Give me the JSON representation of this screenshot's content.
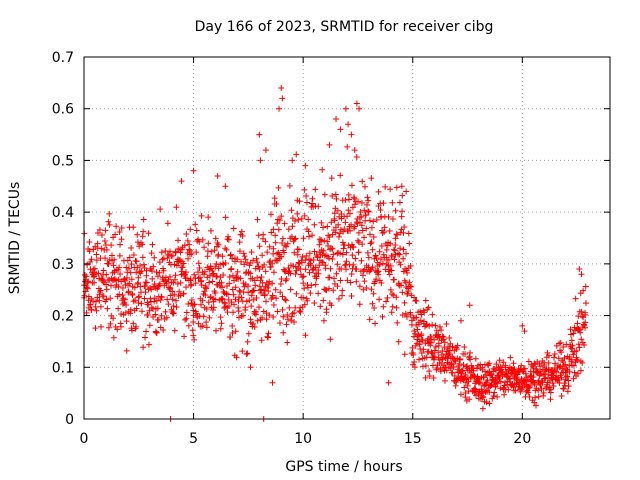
{
  "chart_data": {
    "type": "scatter",
    "title": "Day 166 of 2023, SRMTID for receiver cibg",
    "xlabel": "GPS time / hours",
    "ylabel": "SRMTID / TECUs",
    "xlim": [
      0,
      24
    ],
    "ylim": [
      0,
      0.7
    ],
    "xticks": [
      0,
      5,
      10,
      15,
      20
    ],
    "xtick_labels": [
      "0",
      "5",
      "10",
      "15",
      "20"
    ],
    "yticks": [
      0,
      0.1,
      0.2,
      0.3,
      0.4,
      0.5,
      0.6,
      0.7
    ],
    "ytick_labels": [
      "0",
      "0.1",
      "0.2",
      "0.3",
      "0.4",
      "0.5",
      "0.6",
      "0.7"
    ],
    "grid": true,
    "marker": "+",
    "marker_color": "#ff0000",
    "envelope_hours": [
      0,
      1,
      2,
      3,
      4,
      5,
      6,
      7,
      8,
      9,
      10,
      11,
      12,
      13,
      14,
      14.8,
      15,
      16,
      17,
      18,
      19,
      20,
      21,
      22,
      22.6,
      22.9
    ],
    "envelope_median": [
      0.27,
      0.28,
      0.27,
      0.25,
      0.27,
      0.27,
      0.28,
      0.26,
      0.25,
      0.31,
      0.33,
      0.32,
      0.34,
      0.33,
      0.3,
      0.29,
      0.18,
      0.14,
      0.1,
      0.07,
      0.08,
      0.08,
      0.08,
      0.1,
      0.16,
      0.2
    ],
    "envelope_spread": [
      0.05,
      0.07,
      0.07,
      0.07,
      0.06,
      0.07,
      0.07,
      0.08,
      0.07,
      0.09,
      0.09,
      0.09,
      0.09,
      0.08,
      0.08,
      0.08,
      0.05,
      0.04,
      0.03,
      0.025,
      0.025,
      0.025,
      0.025,
      0.03,
      0.05,
      0.05
    ],
    "sampling_interval_hours": 0.025,
    "points_per_sample": 2,
    "annotated_outliers": [
      {
        "x": 5.0,
        "y": 0.48
      },
      {
        "x": 4.45,
        "y": 0.46
      },
      {
        "x": 6.1,
        "y": 0.47
      },
      {
        "x": 6.45,
        "y": 0.45
      },
      {
        "x": 8.0,
        "y": 0.55
      },
      {
        "x": 8.05,
        "y": 0.5
      },
      {
        "x": 8.3,
        "y": 0.52
      },
      {
        "x": 9.0,
        "y": 0.64
      },
      {
        "x": 9.05,
        "y": 0.62
      },
      {
        "x": 8.9,
        "y": 0.6
      },
      {
        "x": 9.5,
        "y": 0.5
      },
      {
        "x": 10.1,
        "y": 0.49
      },
      {
        "x": 11.2,
        "y": 0.53
      },
      {
        "x": 11.7,
        "y": 0.56
      },
      {
        "x": 11.95,
        "y": 0.6
      },
      {
        "x": 12.05,
        "y": 0.57
      },
      {
        "x": 12.35,
        "y": 0.52
      },
      {
        "x": 12.45,
        "y": 0.61
      },
      {
        "x": 12.55,
        "y": 0.6
      },
      {
        "x": 11.5,
        "y": 0.58
      },
      {
        "x": 12.2,
        "y": 0.55
      },
      {
        "x": 14.5,
        "y": 0.45
      },
      {
        "x": 14.7,
        "y": 0.44
      },
      {
        "x": 17.2,
        "y": 0.19
      },
      {
        "x": 17.6,
        "y": 0.22
      },
      {
        "x": 18.2,
        "y": 0.02
      },
      {
        "x": 18.5,
        "y": 0.03
      },
      {
        "x": 20.0,
        "y": 0.18
      },
      {
        "x": 20.1,
        "y": 0.17
      },
      {
        "x": 22.6,
        "y": 0.29
      },
      {
        "x": 22.7,
        "y": 0.28
      },
      {
        "x": 3.95,
        "y": 0.0
      },
      {
        "x": 8.2,
        "y": 0.0
      },
      {
        "x": 7.6,
        "y": 0.1
      },
      {
        "x": 8.6,
        "y": 0.07
      },
      {
        "x": 13.9,
        "y": 0.07
      }
    ]
  }
}
